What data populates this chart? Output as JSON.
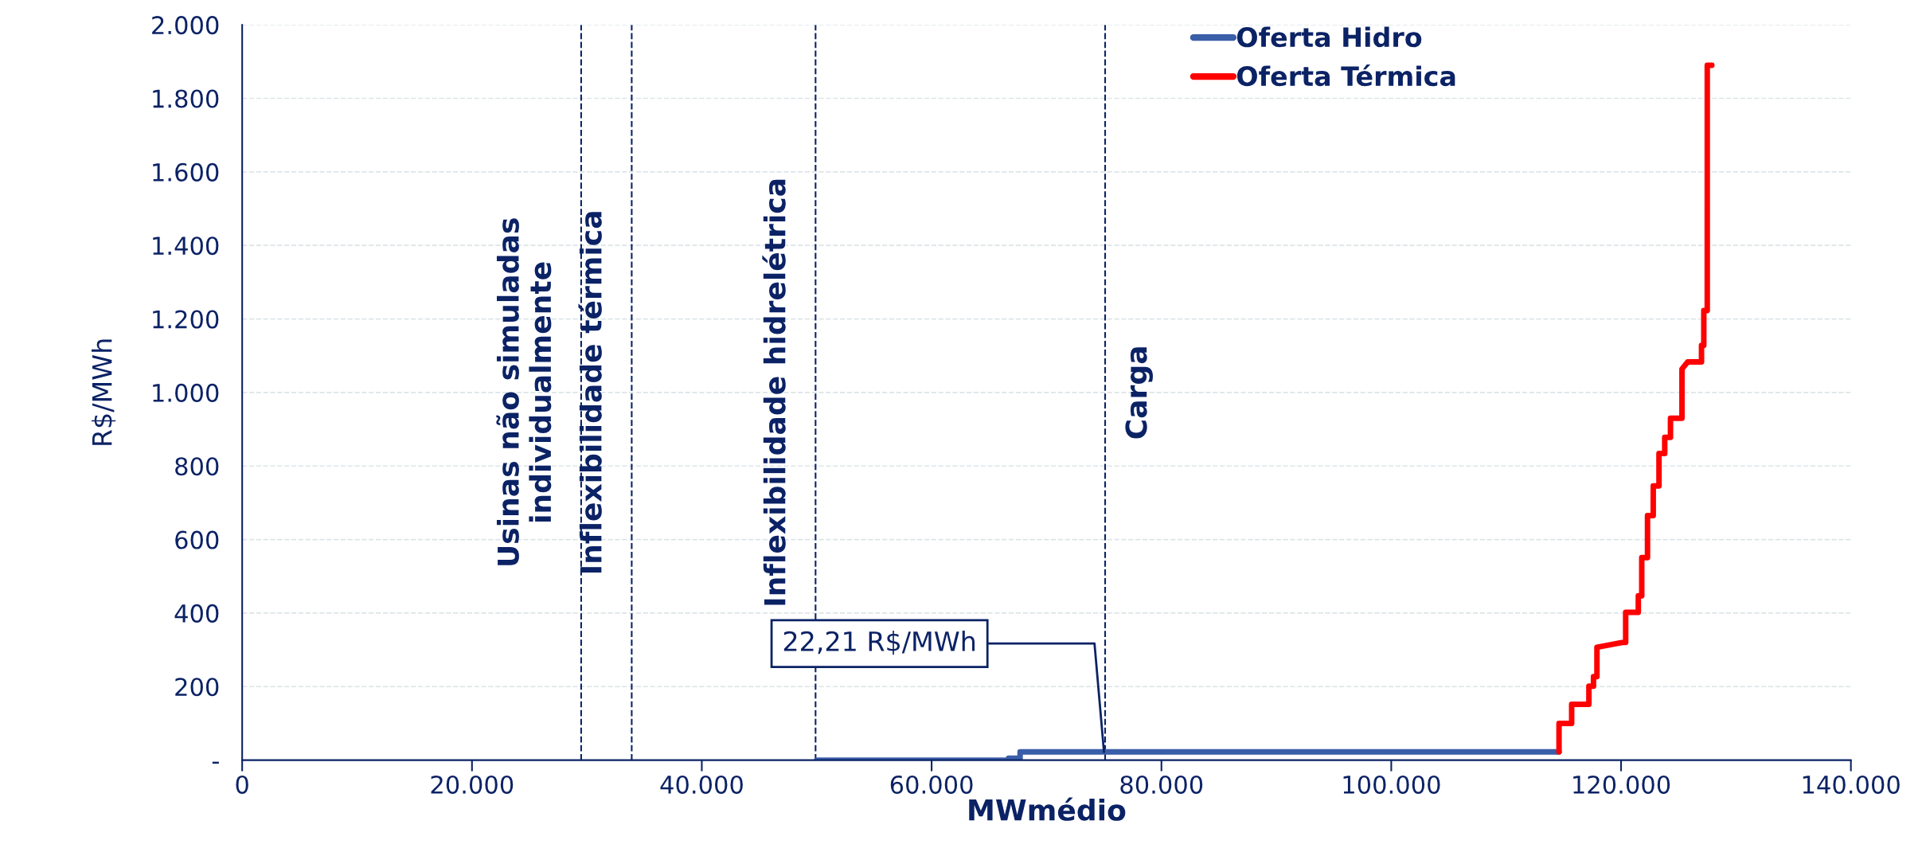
{
  "chart_data": {
    "type": "line",
    "xlabel": "MWmédio",
    "ylabel": "R$/MWh",
    "xlim": [
      0,
      140000
    ],
    "xticks": [
      {
        "value": 0,
        "label": "0"
      },
      {
        "value": 20000,
        "label": "20.000"
      },
      {
        "value": 40000,
        "label": "40.000"
      },
      {
        "value": 60000,
        "label": "60.000"
      },
      {
        "value": 80000,
        "label": "80.000"
      },
      {
        "value": 100000,
        "label": "100.000"
      },
      {
        "value": 120000,
        "label": "120.000"
      },
      {
        "value": 140000,
        "label": "140.000"
      }
    ],
    "ylim": [
      0,
      2000
    ],
    "yticks": [
      {
        "value": 0,
        "label": "-"
      },
      200,
      400,
      600,
      800,
      {
        "value": 1000,
        "label": "1.000"
      },
      {
        "value": 1200,
        "label": "1.200"
      },
      {
        "value": 1400,
        "label": "1.400"
      },
      {
        "value": 1600,
        "label": "1.600"
      },
      {
        "value": 1800,
        "label": "1.800"
      },
      {
        "value": 2000,
        "label": "2.000"
      }
    ],
    "grid": "y",
    "legend": "top right",
    "line_style": "solid",
    "marker": "none",
    "series": [
      {
        "name": "Oferta Hidro",
        "color": "#3a5ea8",
        "x": [
          50000,
          66700,
          66700,
          67700,
          67700,
          114600
        ],
        "values": [
          0,
          0,
          5,
          5,
          22.21,
          22.21
        ]
      },
      {
        "name": "Oferta Térmica",
        "color": "#ff0000",
        "x": [
          114600,
          114600,
          115700,
          115700,
          117200,
          117200,
          117600,
          117600,
          117900,
          117900,
          120100,
          120400,
          120400,
          121500,
          121500,
          121800,
          121800,
          122300,
          122300,
          122800,
          122800,
          123300,
          123300,
          123800,
          123800,
          124300,
          124300,
          125300,
          125300,
          125800,
          126700,
          127000,
          127000,
          127200,
          127200,
          127500,
          127500,
          127900
        ],
        "values": [
          22.21,
          100,
          100,
          152,
          152,
          201,
          201,
          227,
          227,
          307,
          320,
          320,
          402,
          402,
          447,
          447,
          551,
          551,
          665,
          665,
          746,
          746,
          834,
          834,
          878,
          878,
          930,
          930,
          1064,
          1083,
          1083,
          1083,
          1128,
          1128,
          1223,
          1223,
          1890,
          1890
        ]
      }
    ],
    "ref_lines": [
      {
        "axis": "x",
        "value": 29500,
        "line_style": "dashed",
        "label": "Usinas não simuladas\nindividualmente"
      },
      {
        "axis": "x",
        "value": 33900,
        "line_style": "dashed",
        "label": "Inflexibilidade térmica"
      },
      {
        "axis": "x",
        "value": 49900,
        "line_style": "dashed",
        "label": "Inflexibilidade hidrelétrica"
      },
      {
        "axis": "x",
        "value": 75100,
        "line_style": "dashed",
        "label": "Carga"
      }
    ],
    "annotations": [
      {
        "text": "22,21 R$/MWh",
        "x": 75000,
        "y": 22.21
      }
    ]
  }
}
